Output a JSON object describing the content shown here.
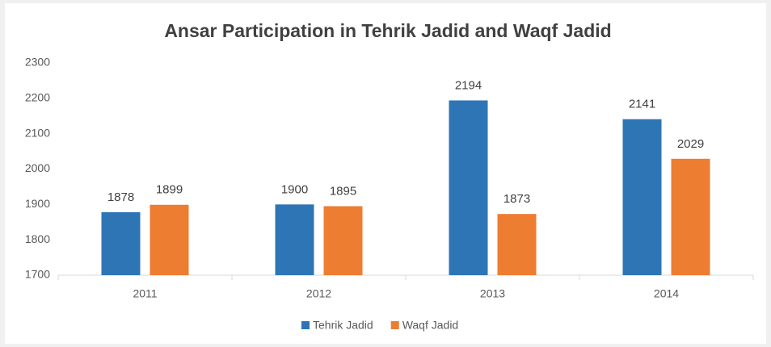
{
  "chart_data": {
    "type": "bar",
    "title": "Ansar Participation in Tehrik Jadid and Waqf Jadid",
    "categories": [
      "2011",
      "2012",
      "2013",
      "2014"
    ],
    "series": [
      {
        "name": "Tehrik Jadid",
        "color": "#2e75b6",
        "values": [
          1878,
          1900,
          2194,
          2141
        ]
      },
      {
        "name": "Waqf Jadid",
        "color": "#ed7d31",
        "values": [
          1899,
          1895,
          1873,
          2029
        ]
      }
    ],
    "ylim": [
      1700,
      2300
    ],
    "yticks": [
      1700,
      1800,
      1900,
      2000,
      2100,
      2200,
      2300
    ],
    "grid": false,
    "legend": "bottom"
  }
}
